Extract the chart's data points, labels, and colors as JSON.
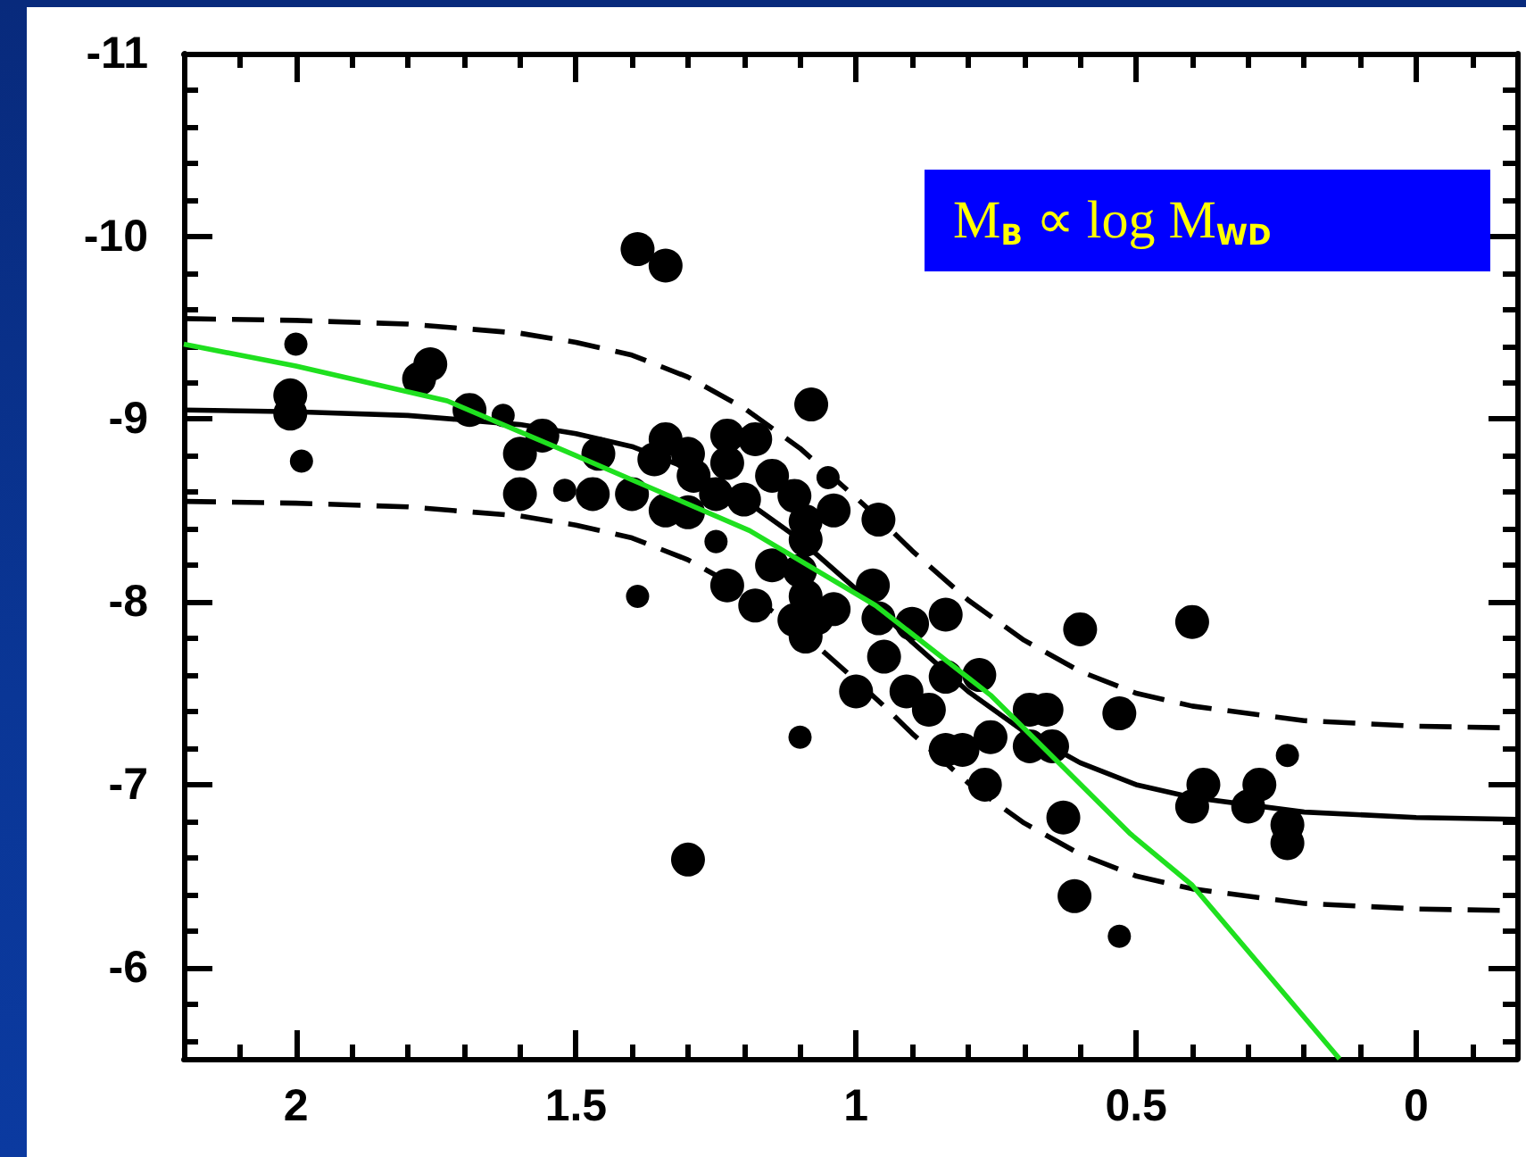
{
  "chart_data": {
    "type": "bubble",
    "annotations": [
      "M$_{B}$ ∝ log M$_{WD}$"
    ],
    "xlim": [
      2.2,
      -0.18
    ],
    "ylim": [
      -5.5,
      -11
    ],
    "xticks": [
      {
        "value": 2.1,
        "label": null
      },
      2,
      {
        "value": 1.9,
        "label": null
      },
      {
        "value": 1.8,
        "label": null
      },
      {
        "value": 1.7,
        "label": null
      },
      {
        "value": 1.6,
        "label": null
      },
      1.5,
      {
        "value": 1.4,
        "label": null
      },
      {
        "value": 1.3,
        "label": null
      },
      {
        "value": 1.2,
        "label": null
      },
      {
        "value": 1.1,
        "label": null
      },
      1,
      {
        "value": 0.9,
        "label": null
      },
      {
        "value": 0.8,
        "label": null
      },
      {
        "value": 0.7,
        "label": null
      },
      {
        "value": 0.6,
        "label": null
      },
      0.5,
      {
        "value": 0.4,
        "label": null
      },
      {
        "value": 0.3,
        "label": null
      },
      {
        "value": 0.2,
        "label": null
      },
      {
        "value": 0.1,
        "label": null
      },
      0,
      {
        "value": -0.1,
        "label": null
      }
    ],
    "yticks": [
      -11,
      {
        "value": -10.8,
        "label": null
      },
      {
        "value": -10.6,
        "label": null
      },
      {
        "value": -10.4,
        "label": null
      },
      {
        "value": -10.2,
        "label": null
      },
      -10,
      {
        "value": -9.8,
        "label": null
      },
      {
        "value": -9.6,
        "label": null
      },
      {
        "value": -9.4,
        "label": null
      },
      {
        "value": -9.2,
        "label": null
      },
      -9,
      {
        "value": -8.8,
        "label": null
      },
      {
        "value": -8.6,
        "label": null
      },
      {
        "value": -8.4,
        "label": null
      },
      {
        "value": -8.2,
        "label": null
      },
      -8,
      {
        "value": -7.8,
        "label": null
      },
      {
        "value": -7.6,
        "label": null
      },
      {
        "value": -7.4,
        "label": null
      },
      {
        "value": -7.2,
        "label": null
      },
      -7,
      {
        "value": -6.8,
        "label": null
      },
      {
        "value": -6.6,
        "label": null
      },
      {
        "value": -6.4,
        "label": null
      },
      {
        "value": -6.2,
        "label": null
      },
      -6,
      {
        "value": -5.8,
        "label": null
      },
      {
        "value": -5.6,
        "label": null
      }
    ],
    "series": [
      {
        "type": "line",
        "color": "#000000",
        "marker": "none",
        "line_style": "solid",
        "x": [
          2.2,
          2.0,
          1.8,
          1.6,
          1.5,
          1.4,
          1.3,
          1.2,
          1.1,
          1.0,
          0.95,
          0.9,
          0.8,
          0.7,
          0.6,
          0.5,
          0.4,
          0.2,
          0,
          -0.18
        ],
        "values": [
          -9.05,
          -9.04,
          -9.02,
          -8.97,
          -8.92,
          -8.85,
          -8.73,
          -8.56,
          -8.34,
          -8.07,
          -7.93,
          -7.78,
          -7.51,
          -7.29,
          -7.12,
          -7.0,
          -6.93,
          -6.85,
          -6.82,
          -6.81
        ]
      },
      {
        "type": "line",
        "color": "#000000",
        "marker": "none",
        "line_style": "dashed",
        "x": [
          2.2,
          2.0,
          1.8,
          1.6,
          1.5,
          1.4,
          1.3,
          1.2,
          1.1,
          1.0,
          0.95,
          0.9,
          0.8,
          0.7,
          0.6,
          0.5,
          0.4,
          0.2,
          0,
          -0.18
        ],
        "values": [
          -9.55,
          -9.54,
          -9.52,
          -9.47,
          -9.42,
          -9.35,
          -9.23,
          -9.06,
          -8.84,
          -8.57,
          -8.43,
          -8.28,
          -8.01,
          -7.79,
          -7.62,
          -7.5,
          -7.43,
          -7.35,
          -7.32,
          -7.31
        ]
      },
      {
        "type": "line",
        "color": "#000000",
        "marker": "none",
        "line_style": "dashed",
        "x": [
          2.2,
          2.0,
          1.8,
          1.6,
          1.5,
          1.4,
          1.3,
          1.2,
          1.1,
          1.0,
          0.95,
          0.9,
          0.8,
          0.7,
          0.6,
          0.5,
          0.4,
          0.2,
          0,
          -0.18
        ],
        "values": [
          -8.55,
          -8.54,
          -8.52,
          -8.47,
          -8.42,
          -8.35,
          -8.23,
          -8.06,
          -7.84,
          -7.57,
          -7.43,
          -7.28,
          -7.01,
          -6.79,
          -6.62,
          -6.5,
          -6.43,
          -6.35,
          -6.32,
          -6.31
        ]
      },
      {
        "color": "#000000",
        "marker": "circle",
        "x": [
          2.0,
          2.01,
          2.01,
          1.99,
          1.76,
          1.78,
          1.69,
          1.63,
          1.6,
          1.56,
          1.6,
          1.52,
          1.47,
          1.46,
          1.4,
          1.39,
          1.34,
          1.34,
          1.36,
          1.34,
          1.3,
          1.29,
          1.3,
          1.25,
          1.23,
          1.23,
          1.18,
          1.25,
          1.2,
          1.08,
          1.15,
          1.11,
          1.05,
          1.04,
          1.09,
          1.09,
          1.39,
          1.23,
          1.18,
          1.15,
          1.09,
          1.07,
          1.09,
          1.04,
          0.97,
          1.0,
          0.96,
          1.1,
          1.11,
          0.96,
          0.9,
          0.84,
          0.95,
          0.91,
          0.87,
          0.84,
          0.78,
          1.1,
          0.84,
          0.81,
          0.76,
          0.69,
          0.66,
          0.69,
          0.65,
          0.77,
          0.63,
          0.6,
          0.53,
          0.4,
          0.23,
          0.38,
          0.4,
          0.28,
          0.3,
          0.23,
          0.23,
          0.61,
          0.53,
          1.3
        ],
        "values": [
          -9.41,
          -9.13,
          -9.03,
          -8.77,
          -9.3,
          -9.22,
          -9.05,
          -9.02,
          -8.81,
          -8.91,
          -8.59,
          -8.61,
          -8.59,
          -8.81,
          -8.59,
          -9.93,
          -9.84,
          -8.89,
          -8.78,
          -8.5,
          -8.81,
          -8.69,
          -8.49,
          -8.33,
          -8.91,
          -8.76,
          -8.89,
          -8.59,
          -8.56,
          -9.08,
          -8.69,
          -8.58,
          -8.68,
          -8.5,
          -8.44,
          -8.34,
          -8.03,
          -8.09,
          -7.98,
          -8.2,
          -8.03,
          -7.91,
          -7.81,
          -7.96,
          -8.09,
          -7.51,
          -8.45,
          -8.17,
          -7.9,
          -7.91,
          -7.88,
          -7.93,
          -7.7,
          -7.51,
          -7.41,
          -7.59,
          -7.6,
          -7.26,
          -7.19,
          -7.19,
          -7.26,
          -7.41,
          -7.41,
          -7.21,
          -7.21,
          -7.0,
          -6.82,
          -7.85,
          -7.39,
          -7.89,
          -7.16,
          -7.0,
          -6.88,
          -7.0,
          -6.88,
          -6.78,
          -6.68,
          -6.39,
          -6.17,
          -6.59
        ],
        "sizes": [
          0.47,
          1,
          1,
          0.47,
          1,
          1,
          1,
          0.47,
          1,
          1,
          1,
          0.47,
          1,
          1,
          1,
          1,
          1,
          1,
          1,
          1,
          1,
          1,
          1,
          0.47,
          1,
          1,
          1,
          1,
          1,
          1,
          1,
          1,
          0.47,
          1,
          1,
          1,
          0.47,
          1,
          1,
          1,
          1,
          1,
          1,
          1,
          1,
          1,
          1,
          1,
          1,
          1,
          1,
          1,
          1,
          1,
          1,
          1,
          1,
          0.47,
          1,
          1,
          1,
          1,
          1,
          1,
          1,
          1,
          1,
          1,
          1,
          1,
          0.47,
          1,
          1,
          1,
          1,
          1,
          1,
          1,
          0.47,
          1
        ]
      },
      {
        "type": "line",
        "color": "#1fe01f",
        "marker": "none",
        "line_style": "solid",
        "x": [
          2.2,
          2.0,
          1.73,
          1.5,
          1.19,
          0.965,
          0.76,
          0.51,
          0.4,
          0.137
        ],
        "values": [
          -9.41,
          -9.29,
          -9.1,
          -8.8,
          -8.39,
          -7.98,
          -7.49,
          -6.73,
          -6.45,
          -5.5
        ]
      }
    ]
  }
}
